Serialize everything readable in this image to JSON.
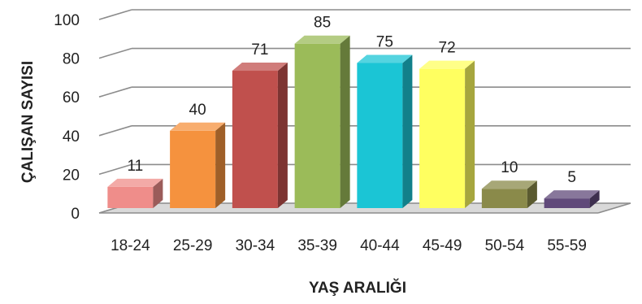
{
  "chart_data": {
    "type": "bar",
    "style": "3d-column",
    "categories": [
      "18-24",
      "25-29",
      "30-34",
      "35-39",
      "40-44",
      "45-49",
      "50-54",
      "55-59"
    ],
    "values": [
      11,
      40,
      71,
      85,
      75,
      72,
      10,
      5
    ],
    "colors": [
      "#ef8d8a",
      "#f5923e",
      "#c0504d",
      "#9bbb59",
      "#1bc5d5",
      "#ffff60",
      "#8a8a4a",
      "#60497a"
    ],
    "title": "",
    "xlabel": "YAŞ ARALIĞI",
    "ylabel": "ÇALIŞAN SAYISI",
    "ylim": [
      0,
      100
    ],
    "yticks": [
      0,
      20,
      40,
      60,
      80,
      100
    ],
    "grid": true,
    "legend": "none",
    "data_labels": true
  }
}
